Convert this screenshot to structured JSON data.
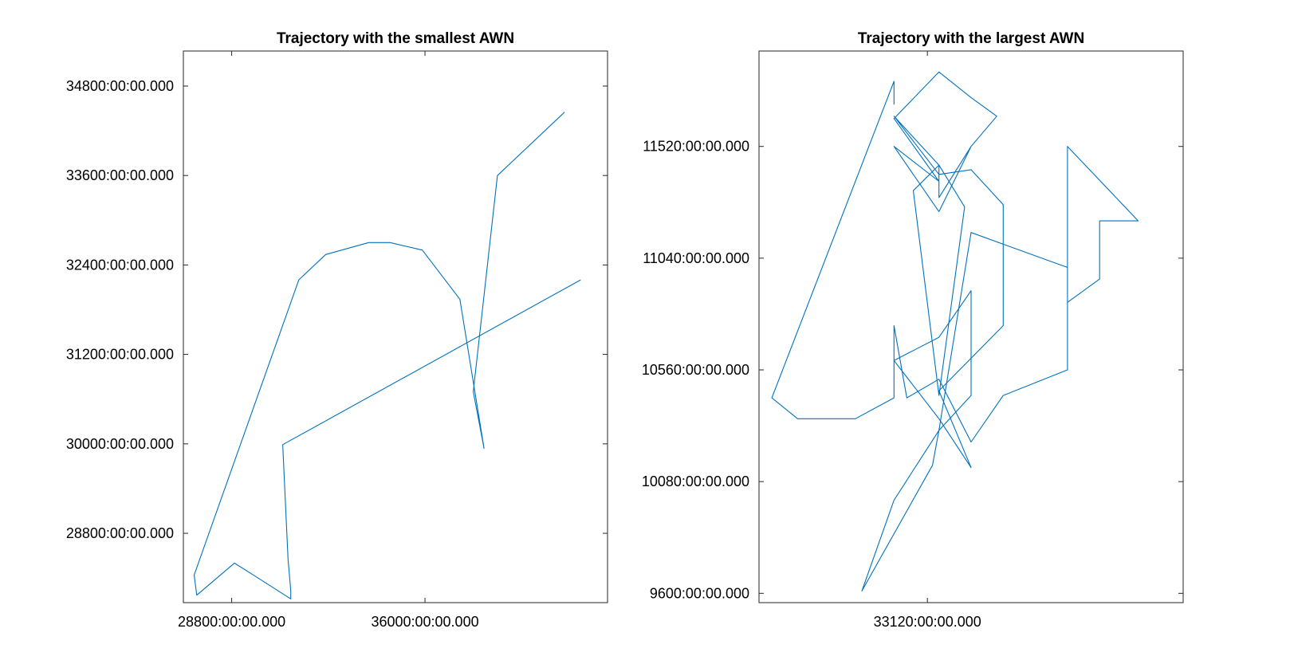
{
  "colors": {
    "series": "#0072BD",
    "axis": "#262626",
    "background": "#ffffff"
  },
  "chart_data": [
    {
      "type": "line",
      "title": "Trajectory with the smallest AWN",
      "xlabel": "",
      "ylabel": "",
      "x_tick_labels": [
        "28800:00:00.000",
        "36000:00:00.000"
      ],
      "y_tick_labels": [
        "28800:00:00.000",
        "30000:00:00.000",
        "31200:00:00.000",
        "32400:00:00.000",
        "33600:00:00.000",
        "34800:00:00.000"
      ],
      "xlim": [
        27000,
        42800
      ],
      "ylim": [
        27870,
        35270
      ],
      "x_ticks": [
        28800,
        36000
      ],
      "y_ticks": [
        28800,
        30000,
        31200,
        32400,
        33600,
        34800
      ],
      "series": [
        {
          "x": [
            41200,
            38700,
            37800,
            38200,
            37300,
            35900,
            34700,
            33900,
            32300,
            31300,
            27400,
            27500,
            28900,
            29700,
            31000,
            31000,
            30900,
            30700,
            41800
          ],
          "y": [
            34450,
            33600,
            30700,
            29940,
            31940,
            32600,
            32700,
            32700,
            32540,
            32200,
            28240,
            27970,
            28400,
            28220,
            27920,
            28030,
            28450,
            29990,
            32200
          ]
        }
      ]
    },
    {
      "type": "line",
      "title": "Trajectory with the largest AWN",
      "xlabel": "",
      "ylabel": "",
      "x_tick_labels": [
        "33120:00:00.000"
      ],
      "y_tick_labels": [
        "9600:00:00.000",
        "10080:00:00.000",
        "10560:00:00.000",
        "11040:00:00.000",
        "11520:00:00.000"
      ],
      "xlim": [
        30500,
        37100
      ],
      "ylim": [
        9560,
        11930
      ],
      "x_ticks": [
        33120
      ],
      "y_ticks": [
        9600,
        10080,
        10560,
        11040,
        11520
      ],
      "series": [
        {
          "x": [
            32600,
            32600,
            30700,
            31100,
            32000,
            32600,
            32600,
            32600,
            32800,
            33300,
            33800,
            34300,
            35300,
            35300,
            36400,
            35800,
            35800,
            35300,
            35300,
            33800,
            33300,
            33200,
            32100,
            32600,
            33300,
            33800,
            33800,
            33300,
            32600,
            33300,
            33800,
            33300,
            34300,
            34300,
            33800,
            33300,
            32600,
            33300,
            33700,
            33300,
            32900,
            33300,
            33300,
            33800,
            34200,
            33800,
            33300,
            32600,
            33300,
            32600,
            33300,
            33800
          ],
          "y": [
            11700,
            11800,
            10440,
            10350,
            10350,
            10440,
            10750,
            10750,
            10440,
            10520,
            10250,
            10450,
            10560,
            11520,
            11200,
            11200,
            10950,
            10850,
            11000,
            11150,
            10300,
            10150,
            9610,
            10000,
            10300,
            10450,
            10900,
            10700,
            10600,
            10350,
            10140,
            10470,
            10750,
            11270,
            11420,
            11400,
            11650,
            11440,
            11260,
            10450,
            11330,
            11440,
            11300,
            11520,
            11650,
            11730,
            11840,
            11640,
            11370,
            11520,
            11240,
            11520
          ]
        }
      ]
    }
  ]
}
